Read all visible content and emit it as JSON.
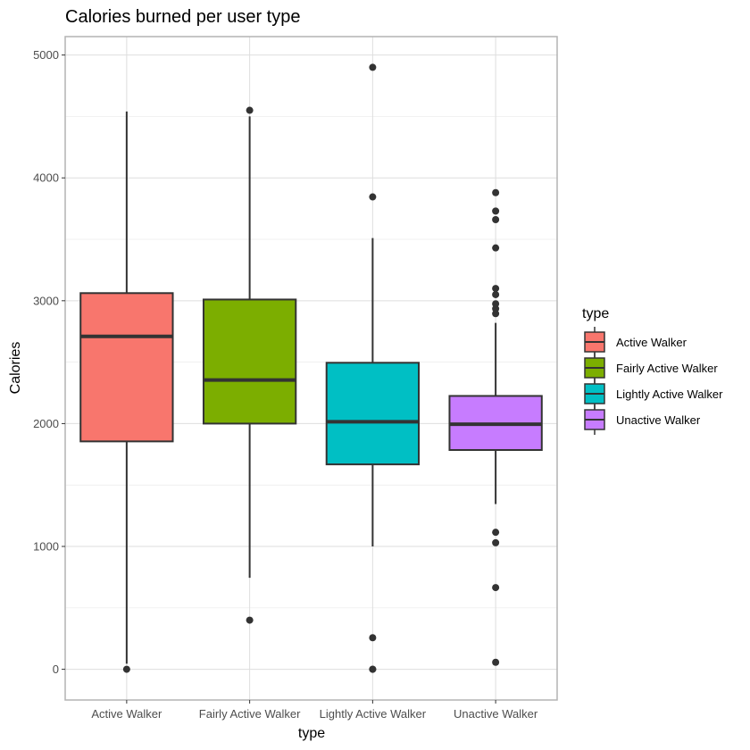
{
  "chart_data": {
    "type": "box",
    "title": "Calories burned per user type",
    "xlabel": "type",
    "ylabel": "Calories",
    "ylim": [
      -250,
      5150
    ],
    "y_ticks": [
      0,
      1000,
      2000,
      3000,
      4000,
      5000
    ],
    "grid": true,
    "legend": {
      "title": "type",
      "placement": "right"
    },
    "categories": [
      "Active Walker",
      "Fairly Active Walker",
      "Lightly Active Walker",
      "Unactive Walker"
    ],
    "series": [
      {
        "name": "Active Walker",
        "color": "#F8766D",
        "q1": 1855,
        "median": 2710,
        "q3": 3062,
        "whisker_low": 45,
        "whisker_high": 4540,
        "outliers": [
          0
        ]
      },
      {
        "name": "Fairly Active Walker",
        "color": "#7CAE00",
        "q1": 2000,
        "median": 2355,
        "q3": 3010,
        "whisker_low": 745,
        "whisker_high": 4500,
        "outliers": [
          400,
          4550
        ]
      },
      {
        "name": "Lightly Active Walker",
        "color": "#00BFC4",
        "q1": 1668,
        "median": 2015,
        "q3": 2495,
        "whisker_low": 1000,
        "whisker_high": 3510,
        "outliers": [
          0,
          0,
          257,
          3845,
          4900
        ]
      },
      {
        "name": "Unactive Walker",
        "color": "#C77CFF",
        "q1": 1785,
        "median": 1995,
        "q3": 2225,
        "whisker_low": 1345,
        "whisker_high": 2820,
        "outliers": [
          57,
          665,
          1030,
          1115,
          2895,
          2935,
          2975,
          3050,
          3100,
          3430,
          3660,
          3730,
          3880
        ]
      }
    ]
  }
}
